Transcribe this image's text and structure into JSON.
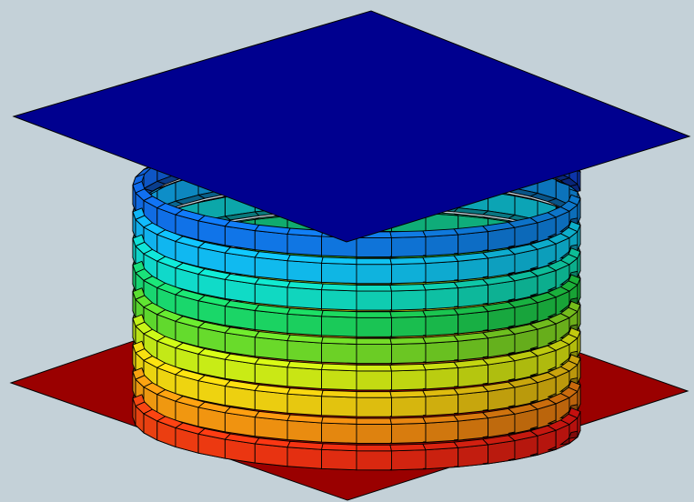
{
  "scene": {
    "subject": "coil-spring-between-plates",
    "background_color": "#c4d1d8",
    "top_plate_color": "#00008f",
    "bottom_plate_color": "#9a0000",
    "outline_color": "#000000",
    "coil_turns": 9,
    "segments_per_turn_visible": 20,
    "colormap": [
      "#e81212",
      "#f07c10",
      "#f0c010",
      "#e8f010",
      "#8ee020",
      "#20d040",
      "#10e0b0",
      "#10d0f0",
      "#1090f0",
      "#1040d8"
    ],
    "colormap_direction": "bottom-to-top"
  }
}
